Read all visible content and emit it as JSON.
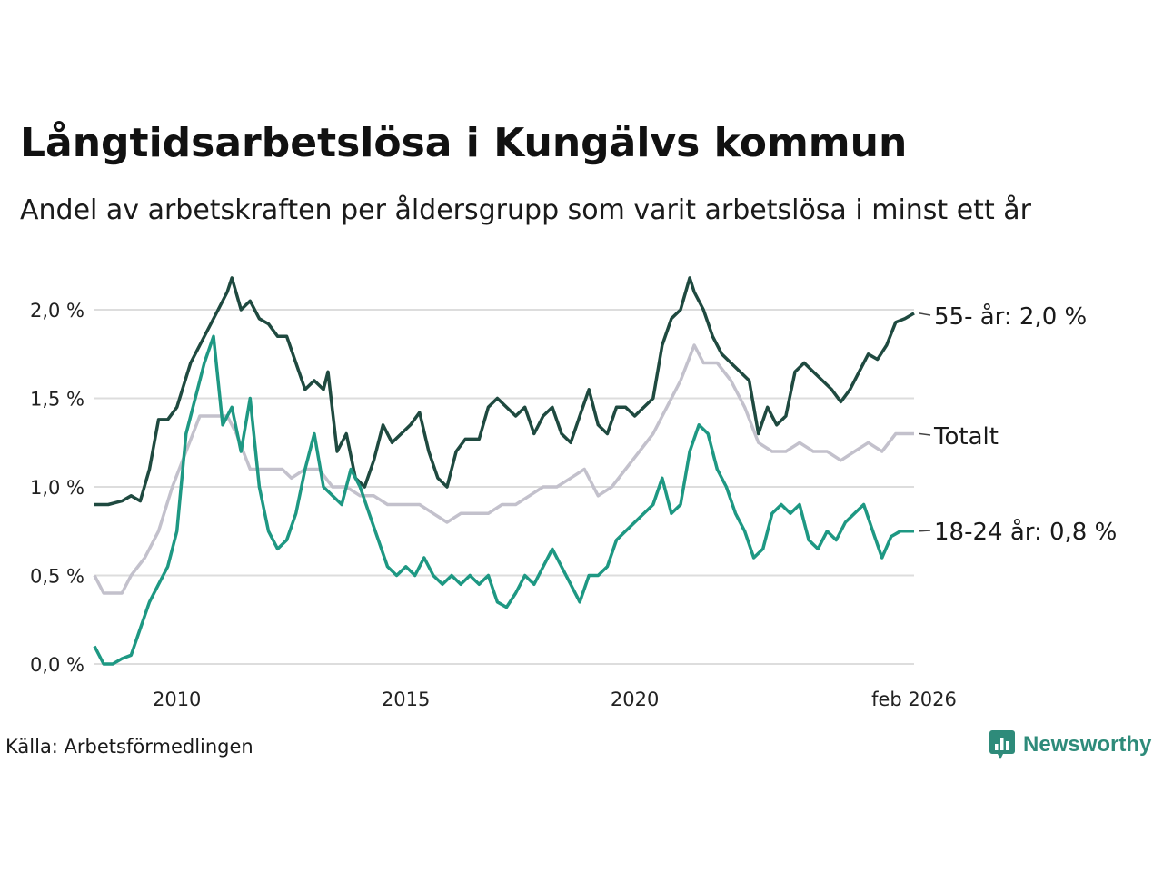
{
  "title": "Långtidsarbetslösa i Kungälvs kommun",
  "subtitle": "Andel av arbetskraften per åldersgrupp som varit arbetslösa i minst ett år",
  "source": "Källa: Arbetsförmedlingen",
  "brand": {
    "name": "Newsworthy",
    "icon": "bar-chart-icon"
  },
  "colors": {
    "age55": "#1f4a40",
    "total": "#c3c1cc",
    "age1824": "#1e9883",
    "grid": "#dddddd",
    "brand": "#2e8b7a"
  },
  "chart_data": {
    "type": "line",
    "title": "Långtidsarbetslösa i Kungälvs kommun",
    "xlabel": "",
    "ylabel": "",
    "xlim": [
      2008.2,
      2026.1
    ],
    "ylim": [
      0,
      2.2
    ],
    "y_ticks": [
      {
        "value": 0.0,
        "label": "0,0 %"
      },
      {
        "value": 0.5,
        "label": "0,5 %"
      },
      {
        "value": 1.0,
        "label": "1,0 %"
      },
      {
        "value": 1.5,
        "label": "1,5 %"
      },
      {
        "value": 2.0,
        "label": "2,0 %"
      }
    ],
    "x_ticks": [
      {
        "value": 2010,
        "label": "2010"
      },
      {
        "value": 2015,
        "label": "2015"
      },
      {
        "value": 2020,
        "label": "2020"
      },
      {
        "value": 2026.1,
        "label": "feb 2026"
      }
    ],
    "grid": true,
    "series": [
      {
        "name": "55- år",
        "end_label": "55- år: 2,0 %",
        "color_key": "age55",
        "points": [
          [
            2008.2,
            0.9
          ],
          [
            2008.5,
            0.9
          ],
          [
            2008.8,
            0.92
          ],
          [
            2009.0,
            0.95
          ],
          [
            2009.2,
            0.92
          ],
          [
            2009.4,
            1.1
          ],
          [
            2009.6,
            1.38
          ],
          [
            2009.8,
            1.38
          ],
          [
            2010.0,
            1.45
          ],
          [
            2010.3,
            1.7
          ],
          [
            2010.5,
            1.8
          ],
          [
            2010.7,
            1.9
          ],
          [
            2010.9,
            2.0
          ],
          [
            2011.1,
            2.1
          ],
          [
            2011.2,
            2.18
          ],
          [
            2011.4,
            2.0
          ],
          [
            2011.6,
            2.05
          ],
          [
            2011.8,
            1.95
          ],
          [
            2012.0,
            1.92
          ],
          [
            2012.2,
            1.85
          ],
          [
            2012.4,
            1.85
          ],
          [
            2012.6,
            1.7
          ],
          [
            2012.8,
            1.55
          ],
          [
            2013.0,
            1.6
          ],
          [
            2013.2,
            1.55
          ],
          [
            2013.3,
            1.65
          ],
          [
            2013.5,
            1.2
          ],
          [
            2013.7,
            1.3
          ],
          [
            2013.9,
            1.05
          ],
          [
            2014.1,
            1.0
          ],
          [
            2014.3,
            1.15
          ],
          [
            2014.5,
            1.35
          ],
          [
            2014.7,
            1.25
          ],
          [
            2014.9,
            1.3
          ],
          [
            2015.1,
            1.35
          ],
          [
            2015.3,
            1.42
          ],
          [
            2015.5,
            1.2
          ],
          [
            2015.7,
            1.05
          ],
          [
            2015.9,
            1.0
          ],
          [
            2016.1,
            1.2
          ],
          [
            2016.3,
            1.27
          ],
          [
            2016.6,
            1.27
          ],
          [
            2016.8,
            1.45
          ],
          [
            2017.0,
            1.5
          ],
          [
            2017.2,
            1.45
          ],
          [
            2017.4,
            1.4
          ],
          [
            2017.6,
            1.45
          ],
          [
            2017.8,
            1.3
          ],
          [
            2018.0,
            1.4
          ],
          [
            2018.2,
            1.45
          ],
          [
            2018.4,
            1.3
          ],
          [
            2018.6,
            1.25
          ],
          [
            2018.8,
            1.4
          ],
          [
            2019.0,
            1.55
          ],
          [
            2019.2,
            1.35
          ],
          [
            2019.4,
            1.3
          ],
          [
            2019.6,
            1.45
          ],
          [
            2019.8,
            1.45
          ],
          [
            2020.0,
            1.4
          ],
          [
            2020.2,
            1.45
          ],
          [
            2020.4,
            1.5
          ],
          [
            2020.6,
            1.8
          ],
          [
            2020.8,
            1.95
          ],
          [
            2021.0,
            2.0
          ],
          [
            2021.2,
            2.18
          ],
          [
            2021.3,
            2.1
          ],
          [
            2021.5,
            2.0
          ],
          [
            2021.7,
            1.85
          ],
          [
            2021.9,
            1.75
          ],
          [
            2022.1,
            1.7
          ],
          [
            2022.3,
            1.65
          ],
          [
            2022.5,
            1.6
          ],
          [
            2022.7,
            1.3
          ],
          [
            2022.9,
            1.45
          ],
          [
            2023.1,
            1.35
          ],
          [
            2023.3,
            1.4
          ],
          [
            2023.5,
            1.65
          ],
          [
            2023.7,
            1.7
          ],
          [
            2023.9,
            1.65
          ],
          [
            2024.1,
            1.6
          ],
          [
            2024.3,
            1.55
          ],
          [
            2024.5,
            1.48
          ],
          [
            2024.7,
            1.55
          ],
          [
            2024.9,
            1.65
          ],
          [
            2025.1,
            1.75
          ],
          [
            2025.3,
            1.72
          ],
          [
            2025.5,
            1.8
          ],
          [
            2025.7,
            1.93
          ],
          [
            2025.9,
            1.95
          ],
          [
            2026.1,
            1.98
          ]
        ]
      },
      {
        "name": "Totalt",
        "end_label": "Totalt",
        "color_key": "total",
        "points": [
          [
            2008.2,
            0.5
          ],
          [
            2008.4,
            0.4
          ],
          [
            2008.8,
            0.4
          ],
          [
            2009.0,
            0.5
          ],
          [
            2009.3,
            0.6
          ],
          [
            2009.6,
            0.75
          ],
          [
            2009.9,
            1.0
          ],
          [
            2010.2,
            1.2
          ],
          [
            2010.5,
            1.4
          ],
          [
            2010.8,
            1.4
          ],
          [
            2011.1,
            1.4
          ],
          [
            2011.3,
            1.3
          ],
          [
            2011.6,
            1.1
          ],
          [
            2012.0,
            1.1
          ],
          [
            2012.3,
            1.1
          ],
          [
            2012.5,
            1.05
          ],
          [
            2012.8,
            1.1
          ],
          [
            2013.1,
            1.1
          ],
          [
            2013.4,
            1.0
          ],
          [
            2013.7,
            1.0
          ],
          [
            2014.0,
            0.95
          ],
          [
            2014.3,
            0.95
          ],
          [
            2014.6,
            0.9
          ],
          [
            2015.0,
            0.9
          ],
          [
            2015.3,
            0.9
          ],
          [
            2015.6,
            0.85
          ],
          [
            2015.9,
            0.8
          ],
          [
            2016.2,
            0.85
          ],
          [
            2016.5,
            0.85
          ],
          [
            2016.8,
            0.85
          ],
          [
            2017.1,
            0.9
          ],
          [
            2017.4,
            0.9
          ],
          [
            2017.7,
            0.95
          ],
          [
            2018.0,
            1.0
          ],
          [
            2018.3,
            1.0
          ],
          [
            2018.6,
            1.05
          ],
          [
            2018.9,
            1.1
          ],
          [
            2019.2,
            0.95
          ],
          [
            2019.5,
            1.0
          ],
          [
            2019.8,
            1.1
          ],
          [
            2020.1,
            1.2
          ],
          [
            2020.4,
            1.3
          ],
          [
            2020.7,
            1.45
          ],
          [
            2021.0,
            1.6
          ],
          [
            2021.3,
            1.8
          ],
          [
            2021.5,
            1.7
          ],
          [
            2021.8,
            1.7
          ],
          [
            2022.1,
            1.6
          ],
          [
            2022.4,
            1.45
          ],
          [
            2022.7,
            1.25
          ],
          [
            2023.0,
            1.2
          ],
          [
            2023.3,
            1.2
          ],
          [
            2023.6,
            1.25
          ],
          [
            2023.9,
            1.2
          ],
          [
            2024.2,
            1.2
          ],
          [
            2024.5,
            1.15
          ],
          [
            2024.8,
            1.2
          ],
          [
            2025.1,
            1.25
          ],
          [
            2025.4,
            1.2
          ],
          [
            2025.7,
            1.3
          ],
          [
            2026.1,
            1.3
          ]
        ]
      },
      {
        "name": "18-24 år",
        "end_label": "18-24 år: 0,8 %",
        "color_key": "age1824",
        "points": [
          [
            2008.2,
            0.1
          ],
          [
            2008.4,
            0.0
          ],
          [
            2008.6,
            0.0
          ],
          [
            2008.8,
            0.03
          ],
          [
            2009.0,
            0.05
          ],
          [
            2009.2,
            0.2
          ],
          [
            2009.4,
            0.35
          ],
          [
            2009.6,
            0.45
          ],
          [
            2009.8,
            0.55
          ],
          [
            2010.0,
            0.75
          ],
          [
            2010.2,
            1.3
          ],
          [
            2010.4,
            1.5
          ],
          [
            2010.6,
            1.7
          ],
          [
            2010.8,
            1.85
          ],
          [
            2011.0,
            1.35
          ],
          [
            2011.2,
            1.45
          ],
          [
            2011.4,
            1.2
          ],
          [
            2011.6,
            1.5
          ],
          [
            2011.8,
            1.0
          ],
          [
            2012.0,
            0.75
          ],
          [
            2012.2,
            0.65
          ],
          [
            2012.4,
            0.7
          ],
          [
            2012.6,
            0.85
          ],
          [
            2012.8,
            1.1
          ],
          [
            2013.0,
            1.3
          ],
          [
            2013.2,
            1.0
          ],
          [
            2013.4,
            0.95
          ],
          [
            2013.6,
            0.9
          ],
          [
            2013.8,
            1.1
          ],
          [
            2014.0,
            1.0
          ],
          [
            2014.2,
            0.85
          ],
          [
            2014.4,
            0.7
          ],
          [
            2014.6,
            0.55
          ],
          [
            2014.8,
            0.5
          ],
          [
            2015.0,
            0.55
          ],
          [
            2015.2,
            0.5
          ],
          [
            2015.4,
            0.6
          ],
          [
            2015.6,
            0.5
          ],
          [
            2015.8,
            0.45
          ],
          [
            2016.0,
            0.5
          ],
          [
            2016.2,
            0.45
          ],
          [
            2016.4,
            0.5
          ],
          [
            2016.6,
            0.45
          ],
          [
            2016.8,
            0.5
          ],
          [
            2017.0,
            0.35
          ],
          [
            2017.2,
            0.32
          ],
          [
            2017.4,
            0.4
          ],
          [
            2017.6,
            0.5
          ],
          [
            2017.8,
            0.45
          ],
          [
            2018.0,
            0.55
          ],
          [
            2018.2,
            0.65
          ],
          [
            2018.4,
            0.55
          ],
          [
            2018.6,
            0.45
          ],
          [
            2018.8,
            0.35
          ],
          [
            2019.0,
            0.5
          ],
          [
            2019.2,
            0.5
          ],
          [
            2019.4,
            0.55
          ],
          [
            2019.6,
            0.7
          ],
          [
            2019.8,
            0.75
          ],
          [
            2020.0,
            0.8
          ],
          [
            2020.2,
            0.85
          ],
          [
            2020.4,
            0.9
          ],
          [
            2020.6,
            1.05
          ],
          [
            2020.8,
            0.85
          ],
          [
            2021.0,
            0.9
          ],
          [
            2021.2,
            1.2
          ],
          [
            2021.4,
            1.35
          ],
          [
            2021.6,
            1.3
          ],
          [
            2021.8,
            1.1
          ],
          [
            2022.0,
            1.0
          ],
          [
            2022.2,
            0.85
          ],
          [
            2022.4,
            0.75
          ],
          [
            2022.6,
            0.6
          ],
          [
            2022.8,
            0.65
          ],
          [
            2023.0,
            0.85
          ],
          [
            2023.2,
            0.9
          ],
          [
            2023.4,
            0.85
          ],
          [
            2023.6,
            0.9
          ],
          [
            2023.8,
            0.7
          ],
          [
            2024.0,
            0.65
          ],
          [
            2024.2,
            0.75
          ],
          [
            2024.4,
            0.7
          ],
          [
            2024.6,
            0.8
          ],
          [
            2024.8,
            0.85
          ],
          [
            2025.0,
            0.9
          ],
          [
            2025.2,
            0.75
          ],
          [
            2025.4,
            0.6
          ],
          [
            2025.6,
            0.72
          ],
          [
            2025.8,
            0.75
          ],
          [
            2026.1,
            0.75
          ]
        ]
      }
    ]
  }
}
